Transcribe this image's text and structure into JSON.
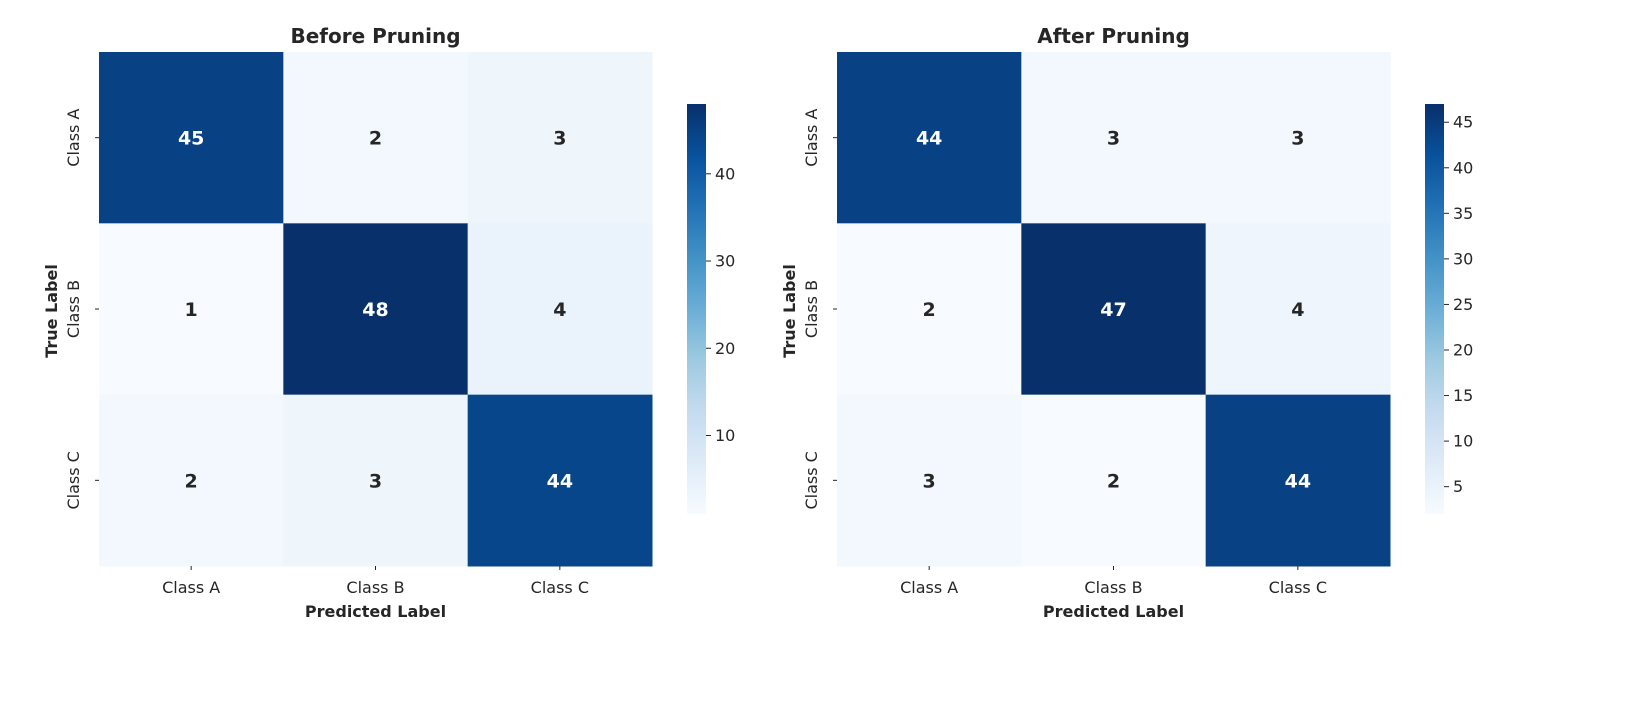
{
  "chart_data": [
    {
      "type": "heatmap",
      "title": "Before Pruning",
      "xlabel": "Predicted Label",
      "ylabel": "True Label",
      "x_categories": [
        "Class A",
        "Class B",
        "Class C"
      ],
      "y_categories": [
        "Class A",
        "Class B",
        "Class C"
      ],
      "values": [
        [
          45,
          2,
          3
        ],
        [
          1,
          48,
          4
        ],
        [
          2,
          3,
          44
        ]
      ],
      "colorbar": {
        "range": [
          1,
          48
        ],
        "ticks": [
          10,
          20,
          30,
          40
        ],
        "colormap": "Blues"
      }
    },
    {
      "type": "heatmap",
      "title": "After Pruning",
      "xlabel": "Predicted Label",
      "ylabel": "True Label",
      "x_categories": [
        "Class A",
        "Class B",
        "Class C"
      ],
      "y_categories": [
        "Class A",
        "Class B",
        "Class C"
      ],
      "values": [
        [
          44,
          3,
          3
        ],
        [
          2,
          47,
          4
        ],
        [
          3,
          2,
          44
        ]
      ],
      "colorbar": {
        "range": [
          2,
          47
        ],
        "ticks": [
          5,
          10,
          15,
          20,
          25,
          30,
          35,
          40,
          45
        ],
        "colormap": "Blues"
      }
    }
  ],
  "colors": {
    "cmap_low": "#f7fbff",
    "cmap_high": "#08306b",
    "text_dark": "#262626",
    "text_light": "#ffffff"
  }
}
